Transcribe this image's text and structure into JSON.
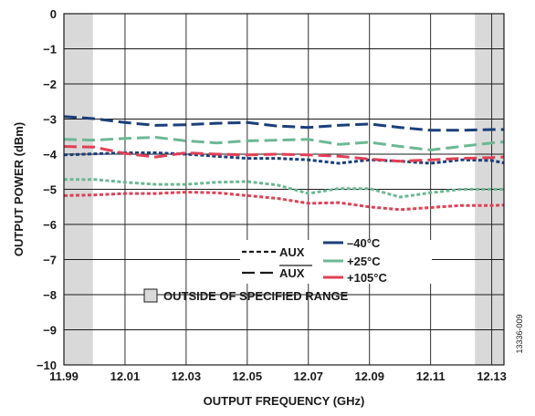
{
  "chart_data": {
    "type": "line",
    "xlabel": "OUTPUT FREQUENCY (GHz)",
    "ylabel": "OUTPUT POWER (dBm)",
    "xlim": [
      11.99,
      12.134
    ],
    "ylim": [
      -10,
      0
    ],
    "x_ticks": [
      "11.99",
      "12.01",
      "12.03",
      "12.05",
      "12.07",
      "12.09",
      "12.11",
      "12.13"
    ],
    "y_ticks": [
      "0",
      "−1",
      "−2",
      "−3",
      "−4",
      "−5",
      "−6",
      "−7",
      "−8",
      "−9",
      "−10"
    ],
    "grid": true,
    "shaded_regions": [
      {
        "x": [
          11.99,
          11.9995
        ],
        "color": "#d9d9d9"
      },
      {
        "x": [
          12.1245,
          12.134
        ],
        "color": "#d9d9d9"
      }
    ],
    "legend": {
      "placement": "center-bottom",
      "line_styles": [
        {
          "label": "AUX",
          "overline": false,
          "dash": "short"
        },
        {
          "label": "AUX",
          "overline": true,
          "dash": "long"
        }
      ],
      "temperatures": [
        {
          "label": "–40°C",
          "color": "#1b3f7a"
        },
        {
          "label": "+25°C",
          "color": "#6cb894"
        },
        {
          "label": "+105°C",
          "color": "#e23f55"
        }
      ],
      "shaded_label": "OUTSIDE OF SPECIFIED RANGE"
    },
    "figure_id": "13336-009",
    "series": [
      {
        "temp": "–40°C",
        "port": "AUX-bar",
        "color": "#1b3f7a",
        "dash": "long",
        "x": [
          11.99,
          12.0,
          12.01,
          12.02,
          12.03,
          12.04,
          12.05,
          12.06,
          12.07,
          12.08,
          12.09,
          12.1,
          12.11,
          12.12,
          12.13,
          12.134
        ],
        "y": [
          -2.93,
          -2.99,
          -3.1,
          -3.18,
          -3.16,
          -3.12,
          -3.1,
          -3.2,
          -3.24,
          -3.18,
          -3.14,
          -3.24,
          -3.32,
          -3.32,
          -3.3,
          -3.3
        ]
      },
      {
        "temp": "–40°C",
        "port": "AUX",
        "color": "#1b3f7a",
        "dash": "short",
        "x": [
          11.99,
          12.0,
          12.01,
          12.02,
          12.03,
          12.04,
          12.05,
          12.06,
          12.07,
          12.08,
          12.09,
          12.1,
          12.11,
          12.12,
          12.13,
          12.134
        ],
        "y": [
          -4.02,
          -3.99,
          -3.96,
          -3.96,
          -4.0,
          -4.06,
          -4.12,
          -4.12,
          -4.16,
          -4.26,
          -4.16,
          -4.2,
          -4.26,
          -4.16,
          -4.18,
          -4.25
        ]
      },
      {
        "temp": "+25°C",
        "port": "AUX-bar",
        "color": "#6cb894",
        "dash": "long",
        "x": [
          11.99,
          12.0,
          12.01,
          12.02,
          12.03,
          12.04,
          12.05,
          12.06,
          12.07,
          12.08,
          12.09,
          12.1,
          12.11,
          12.12,
          12.13,
          12.134
        ],
        "y": [
          -3.58,
          -3.6,
          -3.55,
          -3.52,
          -3.62,
          -3.68,
          -3.62,
          -3.6,
          -3.58,
          -3.72,
          -3.66,
          -3.78,
          -3.88,
          -3.78,
          -3.68,
          -3.65
        ]
      },
      {
        "temp": "+25°C",
        "port": "AUX",
        "color": "#6cb894",
        "dash": "short",
        "x": [
          11.99,
          12.0,
          12.01,
          12.02,
          12.03,
          12.04,
          12.05,
          12.06,
          12.07,
          12.08,
          12.09,
          12.1,
          12.11,
          12.12,
          12.13,
          12.134
        ],
        "y": [
          -4.72,
          -4.72,
          -4.8,
          -4.86,
          -4.86,
          -4.8,
          -4.78,
          -4.88,
          -5.12,
          -4.98,
          -4.98,
          -5.22,
          -5.1,
          -5.0,
          -5.0,
          -5.0
        ]
      },
      {
        "temp": "+105°C",
        "port": "AUX-bar",
        "color": "#e23f55",
        "dash": "long",
        "x": [
          11.99,
          12.0,
          12.01,
          12.02,
          12.03,
          12.04,
          12.05,
          12.06,
          12.07,
          12.08,
          12.09,
          12.1,
          12.11,
          12.12,
          12.13,
          12.134
        ],
        "y": [
          -3.78,
          -3.8,
          -3.98,
          -4.08,
          -3.96,
          -4.0,
          -4.02,
          -4.0,
          -4.02,
          -4.06,
          -4.14,
          -4.2,
          -4.16,
          -4.12,
          -4.1,
          -4.08
        ]
      },
      {
        "temp": "+105°C",
        "port": "AUX",
        "color": "#e23f55",
        "dash": "short",
        "x": [
          11.99,
          12.0,
          12.01,
          12.02,
          12.03,
          12.04,
          12.05,
          12.06,
          12.07,
          12.08,
          12.09,
          12.1,
          12.11,
          12.12,
          12.13,
          12.134
        ],
        "y": [
          -5.18,
          -5.16,
          -5.12,
          -5.12,
          -5.08,
          -5.1,
          -5.18,
          -5.26,
          -5.4,
          -5.38,
          -5.5,
          -5.58,
          -5.52,
          -5.46,
          -5.46,
          -5.45
        ]
      }
    ]
  }
}
